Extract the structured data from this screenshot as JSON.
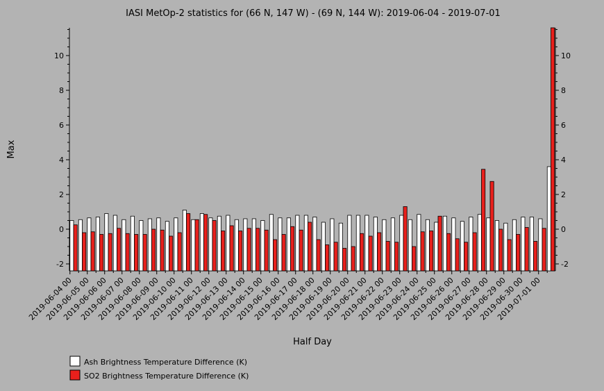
{
  "chart_data": {
    "type": "bar",
    "title": "IASI MetOp-2 statistics for (66 N, 147 W) - (69 N, 144 W): 2019-06-04 - 2019-07-01",
    "xlabel": "Half Day",
    "ylabel": "Max",
    "ylim": [
      -2.4,
      11.6
    ],
    "yticks": [
      -2,
      0,
      2,
      4,
      6,
      8,
      10
    ],
    "grid": false,
    "legend_position": "bottom-left",
    "xtick_labels": [
      "2019-06-04 00",
      "2019-06-05 00",
      "2019-06-06 00",
      "2019-06-07 00",
      "2019-06-08 00",
      "2019-06-09 00",
      "2019-06-10 00",
      "2019-06-11 00",
      "2019-06-12 00",
      "2019-06-13 00",
      "2019-06-14 00",
      "2019-06-15 00",
      "2019-06-16 00",
      "2019-06-17 00",
      "2019-06-18 00",
      "2019-06-19 00",
      "2019-06-20 00",
      "2019-06-21 00",
      "2019-06-22 00",
      "2019-06-23 00",
      "2019-06-24 00",
      "2019-06-25 00",
      "2019-06-26 00",
      "2019-06-27 00",
      "2019-06-28 00",
      "2019-06-29 00",
      "2019-06-30 00",
      "2019-07-01 00"
    ],
    "series": [
      {
        "name": "Ash Brightness Temperature Difference (K)",
        "color": "#ffffff",
        "values": [
          0.5,
          0.55,
          0.65,
          0.7,
          0.9,
          0.8,
          0.55,
          0.75,
          0.5,
          0.6,
          0.65,
          0.45,
          0.65,
          1.1,
          0.55,
          0.9,
          0.65,
          0.75,
          0.8,
          0.55,
          0.6,
          0.6,
          0.5,
          0.85,
          0.65,
          0.65,
          0.8,
          0.8,
          0.7,
          0.4,
          0.6,
          0.35,
          0.8,
          0.8,
          0.8,
          0.7,
          0.55,
          0.65,
          0.8,
          0.55,
          0.85,
          0.55,
          0.4,
          0.75,
          0.65,
          0.45,
          0.7,
          0.85,
          0.65,
          0.5,
          0.35,
          0.55,
          0.7,
          0.7,
          0.6,
          3.6
        ]
      },
      {
        "name": "SO2 Brightness Temperature Difference (K)",
        "color": "#e8201c",
        "values": [
          0.25,
          -0.2,
          -0.15,
          -0.3,
          -0.25,
          0.05,
          -0.25,
          -0.3,
          -0.3,
          0.0,
          -0.05,
          -0.4,
          -0.2,
          0.9,
          0.55,
          0.85,
          0.5,
          -0.1,
          0.2,
          -0.1,
          0.05,
          0.05,
          -0.05,
          -0.6,
          -0.3,
          0.15,
          -0.05,
          0.4,
          -0.6,
          -0.9,
          -0.75,
          -1.1,
          -1.0,
          -0.25,
          -0.4,
          -0.2,
          -0.7,
          -0.75,
          1.3,
          -1.0,
          -0.15,
          -0.1,
          0.75,
          -0.25,
          -0.55,
          -0.75,
          -0.2,
          3.45,
          2.75,
          0.0,
          -0.6,
          -0.3,
          0.1,
          -0.7,
          0.05,
          11.6
        ]
      }
    ]
  }
}
